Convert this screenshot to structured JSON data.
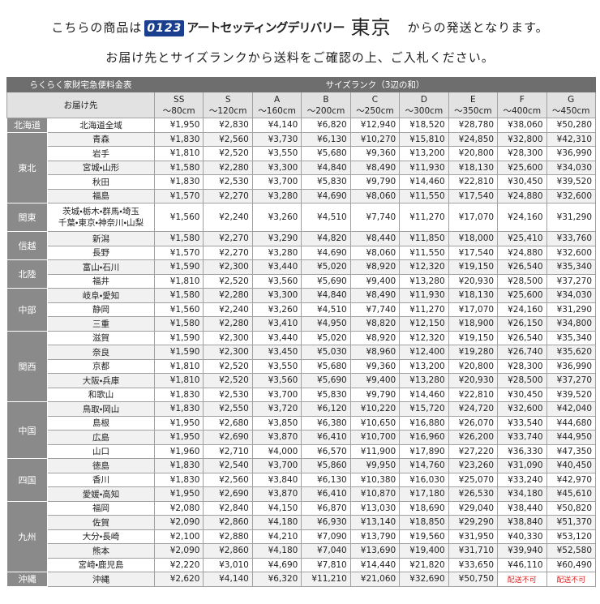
{
  "header": {
    "line1_prefix": "こちらの商品は",
    "logo": "0123",
    "company": "アートセッティングデリバリー",
    "city": "東京",
    "line1_suffix": "からの発送となります。",
    "line2": "お届け先とサイズランクから送料をご確認の上、ご入札ください。"
  },
  "table": {
    "title": "らくらく家財宅急便料金表",
    "size_heading": "サイズランク（3辺の和）",
    "destination_heading": "お届け先",
    "columns": [
      {
        "rank": "SS",
        "range": "～80cm"
      },
      {
        "rank": "S",
        "range": "～120cm"
      },
      {
        "rank": "A",
        "range": "～160cm"
      },
      {
        "rank": "B",
        "range": "～200cm"
      },
      {
        "rank": "C",
        "range": "～250cm"
      },
      {
        "rank": "D",
        "range": "～300cm"
      },
      {
        "rank": "E",
        "range": "～350cm"
      },
      {
        "rank": "F",
        "range": "～400cm"
      },
      {
        "rank": "G",
        "range": "～450cm"
      }
    ],
    "groups": [
      {
        "region": "北海道",
        "rows": [
          {
            "destination": [
              "北海道全域"
            ],
            "prices": [
              "¥1,950",
              "¥2,830",
              "¥4,140",
              "¥6,820",
              "¥12,940",
              "¥18,520",
              "¥28,780",
              "¥38,060",
              "¥50,280"
            ]
          }
        ]
      },
      {
        "region": "東北",
        "rows": [
          {
            "destination": [
              "青森"
            ],
            "prices": [
              "¥1,830",
              "¥2,560",
              "¥3,730",
              "¥6,130",
              "¥10,270",
              "¥15,810",
              "¥24,850",
              "¥32,800",
              "¥42,310"
            ]
          },
          {
            "destination": [
              "岩手"
            ],
            "prices": [
              "¥1,810",
              "¥2,520",
              "¥3,550",
              "¥5,680",
              "¥9,360",
              "¥13,200",
              "¥20,800",
              "¥28,300",
              "¥36,990"
            ]
          },
          {
            "destination": [
              "宮城・山形"
            ],
            "prices": [
              "¥1,580",
              "¥2,280",
              "¥3,300",
              "¥4,840",
              "¥8,490",
              "¥11,930",
              "¥18,130",
              "¥25,600",
              "¥34,030"
            ]
          },
          {
            "destination": [
              "秋田"
            ],
            "prices": [
              "¥1,830",
              "¥2,530",
              "¥3,700",
              "¥5,830",
              "¥9,790",
              "¥14,460",
              "¥22,810",
              "¥30,450",
              "¥39,520"
            ]
          },
          {
            "destination": [
              "福島"
            ],
            "prices": [
              "¥1,570",
              "¥2,270",
              "¥3,280",
              "¥4,690",
              "¥8,060",
              "¥11,550",
              "¥17,540",
              "¥24,880",
              "¥32,600"
            ]
          }
        ]
      },
      {
        "region": "関東",
        "rows": [
          {
            "destination": [
              "茨城・栃木・群馬・埼玉",
              "千葉・東京・神奈川・山梨"
            ],
            "prices": [
              "¥1,560",
              "¥2,240",
              "¥3,260",
              "¥4,510",
              "¥7,740",
              "¥11,270",
              "¥17,070",
              "¥24,160",
              "¥31,290"
            ]
          }
        ]
      },
      {
        "region": "信越",
        "rows": [
          {
            "destination": [
              "新潟"
            ],
            "prices": [
              "¥1,580",
              "¥2,270",
              "¥3,290",
              "¥4,820",
              "¥8,440",
              "¥11,850",
              "¥18,000",
              "¥25,410",
              "¥33,760"
            ]
          },
          {
            "destination": [
              "長野"
            ],
            "prices": [
              "¥1,570",
              "¥2,270",
              "¥3,280",
              "¥4,690",
              "¥8,060",
              "¥11,550",
              "¥17,540",
              "¥24,880",
              "¥32,600"
            ]
          }
        ]
      },
      {
        "region": "北陸",
        "rows": [
          {
            "destination": [
              "富山・石川"
            ],
            "prices": [
              "¥1,590",
              "¥2,300",
              "¥3,440",
              "¥5,020",
              "¥8,920",
              "¥12,320",
              "¥19,150",
              "¥26,540",
              "¥35,340"
            ]
          },
          {
            "destination": [
              "福井"
            ],
            "prices": [
              "¥1,810",
              "¥2,520",
              "¥3,560",
              "¥5,690",
              "¥9,400",
              "¥13,280",
              "¥20,930",
              "¥28,500",
              "¥37,270"
            ]
          }
        ]
      },
      {
        "region": "中部",
        "rows": [
          {
            "destination": [
              "岐阜・愛知"
            ],
            "prices": [
              "¥1,580",
              "¥2,280",
              "¥3,300",
              "¥4,840",
              "¥8,490",
              "¥11,930",
              "¥18,130",
              "¥25,600",
              "¥34,030"
            ]
          },
          {
            "destination": [
              "静岡"
            ],
            "prices": [
              "¥1,560",
              "¥2,240",
              "¥3,260",
              "¥4,510",
              "¥7,740",
              "¥11,270",
              "¥17,070",
              "¥24,160",
              "¥31,290"
            ]
          },
          {
            "destination": [
              "三重"
            ],
            "prices": [
              "¥1,580",
              "¥2,280",
              "¥3,410",
              "¥4,950",
              "¥8,820",
              "¥12,150",
              "¥18,900",
              "¥26,150",
              "¥34,800"
            ]
          }
        ]
      },
      {
        "region": "関西",
        "rows": [
          {
            "destination": [
              "滋賀"
            ],
            "prices": [
              "¥1,590",
              "¥2,300",
              "¥3,440",
              "¥5,020",
              "¥8,920",
              "¥12,320",
              "¥19,150",
              "¥26,540",
              "¥35,340"
            ]
          },
          {
            "destination": [
              "奈良"
            ],
            "prices": [
              "¥1,590",
              "¥2,300",
              "¥3,450",
              "¥5,030",
              "¥8,960",
              "¥12,400",
              "¥19,280",
              "¥26,740",
              "¥35,620"
            ]
          },
          {
            "destination": [
              "京都"
            ],
            "prices": [
              "¥1,810",
              "¥2,520",
              "¥3,550",
              "¥5,680",
              "¥9,360",
              "¥13,200",
              "¥20,800",
              "¥28,300",
              "¥36,990"
            ]
          },
          {
            "destination": [
              "大阪・兵庫"
            ],
            "prices": [
              "¥1,810",
              "¥2,520",
              "¥3,560",
              "¥5,690",
              "¥9,400",
              "¥13,280",
              "¥20,930",
              "¥28,500",
              "¥37,270"
            ]
          },
          {
            "destination": [
              "和歌山"
            ],
            "prices": [
              "¥1,830",
              "¥2,530",
              "¥3,700",
              "¥5,830",
              "¥9,790",
              "¥14,460",
              "¥22,810",
              "¥30,450",
              "¥39,520"
            ]
          }
        ]
      },
      {
        "region": "中国",
        "rows": [
          {
            "destination": [
              "鳥取・岡山"
            ],
            "prices": [
              "¥1,830",
              "¥2,550",
              "¥3,720",
              "¥6,120",
              "¥10,220",
              "¥15,720",
              "¥24,720",
              "¥32,600",
              "¥42,040"
            ]
          },
          {
            "destination": [
              "島根"
            ],
            "prices": [
              "¥1,950",
              "¥2,680",
              "¥3,850",
              "¥6,380",
              "¥10,650",
              "¥16,880",
              "¥26,070",
              "¥33,540",
              "¥44,680"
            ]
          },
          {
            "destination": [
              "広島"
            ],
            "prices": [
              "¥1,950",
              "¥2,690",
              "¥3,870",
              "¥6,410",
              "¥10,700",
              "¥16,960",
              "¥26,200",
              "¥33,740",
              "¥44,950"
            ]
          },
          {
            "destination": [
              "山口"
            ],
            "prices": [
              "¥1,960",
              "¥2,710",
              "¥4,000",
              "¥6,570",
              "¥11,900",
              "¥17,890",
              "¥27,220",
              "¥36,330",
              "¥47,350"
            ]
          }
        ]
      },
      {
        "region": "四国",
        "rows": [
          {
            "destination": [
              "徳島"
            ],
            "prices": [
              "¥1,830",
              "¥2,540",
              "¥3,700",
              "¥5,860",
              "¥9,950",
              "¥14,760",
              "¥23,260",
              "¥31,090",
              "¥40,450"
            ]
          },
          {
            "destination": [
              "香川"
            ],
            "prices": [
              "¥1,830",
              "¥2,560",
              "¥3,840",
              "¥6,130",
              "¥10,380",
              "¥16,030",
              "¥25,070",
              "¥33,240",
              "¥42,970"
            ]
          },
          {
            "destination": [
              "愛媛・高知"
            ],
            "prices": [
              "¥1,950",
              "¥2,690",
              "¥3,870",
              "¥6,410",
              "¥10,870",
              "¥17,180",
              "¥26,530",
              "¥34,180",
              "¥45,610"
            ]
          }
        ]
      },
      {
        "region": "九州",
        "rows": [
          {
            "destination": [
              "福岡"
            ],
            "prices": [
              "¥2,080",
              "¥2,840",
              "¥4,150",
              "¥6,870",
              "¥13,030",
              "¥18,690",
              "¥29,040",
              "¥38,440",
              "¥50,820"
            ]
          },
          {
            "destination": [
              "佐賀"
            ],
            "prices": [
              "¥2,090",
              "¥2,860",
              "¥4,180",
              "¥6,930",
              "¥13,140",
              "¥18,850",
              "¥29,290",
              "¥38,840",
              "¥51,370"
            ]
          },
          {
            "destination": [
              "大分・長崎"
            ],
            "prices": [
              "¥2,100",
              "¥2,880",
              "¥4,210",
              "¥7,090",
              "¥13,790",
              "¥19,560",
              "¥31,950",
              "¥40,330",
              "¥53,120"
            ]
          },
          {
            "destination": [
              "熊本"
            ],
            "prices": [
              "¥2,090",
              "¥2,860",
              "¥4,180",
              "¥7,040",
              "¥13,690",
              "¥19,400",
              "¥31,710",
              "¥39,940",
              "¥52,580"
            ]
          },
          {
            "destination": [
              "宮崎・鹿児島"
            ],
            "prices": [
              "¥2,220",
              "¥3,010",
              "¥4,690",
              "¥7,810",
              "¥14,440",
              "¥21,820",
              "¥33,650",
              "¥46,110",
              "¥60,490"
            ]
          }
        ]
      },
      {
        "region": "沖縄",
        "rows": [
          {
            "destination": [
              "沖縄"
            ],
            "prices": [
              "¥2,620",
              "¥4,140",
              "¥6,320",
              "¥11,210",
              "¥21,060",
              "¥32,690",
              "¥50,750",
              "配送不可",
              "配送不可"
            ]
          }
        ]
      }
    ]
  }
}
